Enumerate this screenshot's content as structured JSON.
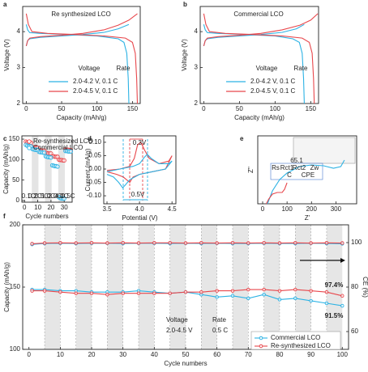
{
  "chart_data": [
    {
      "type": "line",
      "label": "a",
      "title": "Re synthesized LCO",
      "xlabel": "Capacity (mAh/g)",
      "ylabel": "Voltage (V)",
      "xlim": [
        -5,
        161
      ],
      "ylim": [
        2,
        4.7
      ],
      "xticks": [
        0,
        50,
        100,
        150
      ],
      "yticks": [
        2,
        3,
        4
      ],
      "legend_header": [
        "Voltage",
        "Rate"
      ],
      "legend": [
        {
          "label": "2.0-4.2 V, 0.1 C",
          "color": "#2cb2e4"
        },
        {
          "label": "2.0-4.5 V, 0.1 C",
          "color": "#e8474c"
        }
      ],
      "series": [
        {
          "color": "#2cb2e4",
          "x": [
            0,
            2,
            5,
            20,
            50,
            80,
            110,
            130,
            145
          ],
          "values": [
            3.6,
            3.75,
            3.8,
            3.84,
            3.88,
            3.92,
            3.98,
            4.08,
            4.2
          ]
        },
        {
          "color": "#2cb2e4",
          "x": [
            0,
            2,
            5,
            20,
            60,
            100,
            130,
            138,
            142,
            144,
            145
          ],
          "values": [
            4.2,
            4.05,
            3.97,
            3.95,
            3.92,
            3.88,
            3.8,
            3.7,
            3.4,
            2.7,
            2.0
          ]
        },
        {
          "color": "#e8474c",
          "x": [
            0,
            2,
            5,
            20,
            50,
            80,
            110,
            130,
            145,
            157
          ],
          "values": [
            3.6,
            3.75,
            3.82,
            3.86,
            3.9,
            3.95,
            4.05,
            4.18,
            4.32,
            4.5
          ]
        },
        {
          "color": "#e8474c",
          "x": [
            0,
            3,
            8,
            30,
            70,
            110,
            140,
            150,
            154,
            156,
            157
          ],
          "values": [
            4.5,
            4.2,
            4.0,
            3.95,
            3.92,
            3.88,
            3.82,
            3.7,
            3.4,
            2.7,
            2.0
          ]
        }
      ]
    },
    {
      "type": "line",
      "label": "b",
      "title": "Commercial LCO",
      "xlabel": "Capacity (mAh/g)",
      "ylabel": "Voltage (V)",
      "xlim": [
        -5,
        161
      ],
      "ylim": [
        2,
        4.7
      ],
      "xticks": [
        0,
        50,
        100,
        150
      ],
      "yticks": [
        2,
        3,
        4
      ],
      "legend_header": [
        "Voltage",
        "Rate"
      ],
      "legend": [
        {
          "label": "2.0-4.2 V, 0.1 C",
          "color": "#2cb2e4"
        },
        {
          "label": "2.0-4.5 V, 0.1 C",
          "color": "#e8474c"
        }
      ],
      "series": [
        {
          "color": "#2cb2e4",
          "x": [
            0,
            2,
            5,
            20,
            50,
            80,
            110,
            130,
            141
          ],
          "values": [
            3.6,
            3.75,
            3.8,
            3.84,
            3.88,
            3.92,
            3.98,
            4.08,
            4.2
          ]
        },
        {
          "color": "#2cb2e4",
          "x": [
            0,
            2,
            5,
            20,
            60,
            100,
            125,
            134,
            138,
            140,
            141
          ],
          "values": [
            4.2,
            4.05,
            3.97,
            3.95,
            3.92,
            3.88,
            3.8,
            3.7,
            3.4,
            2.7,
            2.0
          ]
        },
        {
          "color": "#e8474c",
          "x": [
            0,
            2,
            5,
            20,
            50,
            80,
            110,
            135,
            150,
            160
          ],
          "values": [
            3.6,
            3.75,
            3.82,
            3.86,
            3.9,
            3.95,
            4.05,
            4.18,
            4.32,
            4.5
          ]
        },
        {
          "color": "#e8474c",
          "x": [
            0,
            3,
            8,
            30,
            70,
            110,
            138,
            148,
            152,
            154,
            155
          ],
          "values": [
            4.5,
            4.2,
            4.0,
            3.95,
            3.92,
            3.88,
            3.82,
            3.7,
            3.4,
            2.7,
            2.0
          ]
        }
      ]
    },
    {
      "type": "scatter",
      "label": "c",
      "xlabel": "Cycle numbers",
      "ylabel": "Capacity (mAh/g)",
      "xlim": [
        -2,
        36
      ],
      "ylim": [
        -4,
        158
      ],
      "xticks": [
        0,
        10,
        20,
        30
      ],
      "yticks": [
        0,
        50,
        100,
        150
      ],
      "rate_labels": [
        "0.1C",
        "0.2C",
        "0.5C",
        "1.0C",
        "2.0C",
        "4.0C",
        "0.5C"
      ],
      "x": [
        1,
        2,
        3,
        4,
        5,
        6,
        7,
        8,
        9,
        10,
        11,
        12,
        13,
        14,
        15,
        16,
        17,
        18,
        19,
        20,
        21,
        22,
        23,
        24,
        25,
        26,
        27,
        28,
        29,
        30,
        31,
        32,
        33,
        34,
        35
      ],
      "series": [
        {
          "name": "Re-synthesized LCO",
          "color": "#e8474c",
          "values": [
            144,
            142,
            142,
            141,
            141,
            131,
            130,
            130,
            129,
            129,
            123,
            123,
            122,
            122,
            122,
            116,
            116,
            115,
            115,
            115,
            108,
            108,
            107,
            107,
            107,
            100,
            99,
            99,
            98,
            98,
            124,
            124,
            124,
            123,
            123
          ]
        },
        {
          "name": "Commercial LCO",
          "color": "#2cb2e4",
          "values": [
            136,
            134,
            133,
            133,
            132,
            126,
            125,
            124,
            124,
            124,
            119,
            118,
            118,
            117,
            117,
            108,
            107,
            106,
            106,
            105,
            86,
            85,
            84,
            84,
            83,
            8,
            6,
            5,
            5,
            5,
            121,
            121,
            120,
            120,
            120
          ]
        }
      ]
    },
    {
      "type": "line",
      "label": "d",
      "xlabel": "Potential (V)",
      "ylabel": "Current (mA/g)",
      "xlim": [
        3.45,
        4.56
      ],
      "ylim": [
        -0.13,
        0.124
      ],
      "xticks": [
        3.5,
        {
          "value": 4,
          "label": "4.0"
        },
        4.5
      ],
      "yticks": [
        {
          "value": -0.1,
          "label": "-0.10"
        },
        -0.05,
        {
          "value": 0,
          "label": "0.00"
        },
        0.05,
        {
          "value": 0.1,
          "label": "0.10"
        }
      ],
      "annotations": [
        {
          "text": "0.3V"
        },
        {
          "text": "0.5V"
        }
      ],
      "series": [
        {
          "color": "#e8474c",
          "x": [
            3.5,
            3.7,
            3.85,
            3.92,
            3.97,
            4.02,
            4.08,
            4.15,
            4.3,
            4.45,
            4.5,
            4.4,
            4.2,
            4.0,
            3.9,
            3.85,
            3.8,
            3.75,
            3.65,
            3.5
          ],
          "values": [
            -0.005,
            0.0,
            0.01,
            0.04,
            0.09,
            0.1,
            0.07,
            0.04,
            0.02,
            0.03,
            0.05,
            0.0,
            -0.01,
            -0.02,
            -0.03,
            -0.05,
            -0.04,
            -0.03,
            -0.02,
            -0.01
          ]
        },
        {
          "color": "#2cb2e4",
          "x": [
            3.5,
            3.7,
            3.9,
            4.0,
            4.08,
            4.12,
            4.18,
            4.3,
            4.45,
            4.5,
            4.4,
            4.2,
            4.0,
            3.85,
            3.78,
            3.74,
            3.68,
            3.6,
            3.5
          ],
          "values": [
            -0.01,
            0.0,
            0.01,
            0.02,
            0.045,
            0.055,
            0.04,
            0.02,
            0.02,
            0.03,
            0.0,
            -0.01,
            -0.02,
            -0.04,
            -0.06,
            -0.07,
            -0.05,
            -0.03,
            -0.02
          ]
        }
      ]
    },
    {
      "type": "line",
      "label": "e",
      "xlabel": "Z'",
      "ylabel": "Z''",
      "xlim": [
        -20,
        385
      ],
      "ylim": [
        0,
        420
      ],
      "xticks": [
        0,
        100,
        200,
        300
      ],
      "annotations": [
        {
          "text": "65.1"
        },
        {
          "text": "Rs"
        },
        {
          "text": "Rct1"
        },
        {
          "text": "Rct2"
        },
        {
          "text": "Zw"
        },
        {
          "text": "C"
        },
        {
          "text": "CPE"
        }
      ],
      "series": [
        {
          "color": "#2cb2e4",
          "x": [
            20,
            40,
            70,
            100,
            150,
            200,
            250,
            290,
            320,
            335
          ],
          "values": [
            0,
            80,
            150,
            190,
            230,
            240,
            235,
            220,
            230,
            270
          ]
        },
        {
          "color": "#e8474c",
          "x": [
            15,
            25,
            40,
            60,
            80,
            90,
            100
          ],
          "values": [
            0,
            30,
            60,
            70,
            70,
            90,
            130
          ]
        }
      ]
    },
    {
      "type": "line",
      "markers": true,
      "label": "f",
      "xlabel": "Cycle numbers",
      "ylabel": "Capacity (mAh/g)",
      "y2label": "CE (%)",
      "xlim": [
        -2,
        102
      ],
      "ylim": [
        100,
        200
      ],
      "y2lim": [
        52,
        108
      ],
      "xticks": [
        0,
        10,
        20,
        30,
        40,
        50,
        60,
        70,
        80,
        90,
        100
      ],
      "yticks": [
        100,
        150,
        200
      ],
      "y2ticks": [
        60,
        80,
        100
      ],
      "annotations": [
        {
          "text": "Voltage"
        },
        {
          "text": "Rate"
        },
        {
          "text": "2.0-4.5 V"
        },
        {
          "text": "0.5 C"
        },
        {
          "text": "97.4%",
          "color": "#e8474c"
        },
        {
          "text": "91.5%",
          "color": "#2cb2e4"
        }
      ],
      "legend": [
        {
          "label": "Commercial LCO",
          "color": "#2cb2e4"
        },
        {
          "label": "Re-synthesized LCO",
          "color": "#e8474c"
        }
      ],
      "x": [
        1,
        5,
        10,
        15,
        20,
        25,
        30,
        35,
        40,
        45,
        50,
        55,
        60,
        65,
        70,
        75,
        80,
        85,
        90,
        95,
        100
      ],
      "series": [
        {
          "color": "#2cb2e4",
          "values": [
            148,
            148,
            147,
            147,
            146,
            146,
            146,
            147,
            146,
            145,
            146,
            144,
            142,
            143,
            141,
            144,
            140,
            141,
            139,
            137,
            135
          ]
        },
        {
          "color": "#e8474c",
          "values": [
            147,
            147,
            146,
            145,
            145,
            144,
            145,
            145,
            145,
            145,
            146,
            146,
            147,
            147,
            148,
            148,
            147,
            148,
            147,
            146,
            143
          ]
        },
        {
          "color": "#2cb2e4",
          "axis": "y2",
          "values": [
            99.2,
            99.6,
            99.7,
            99.6,
            99.7,
            99.7,
            99.6,
            99.7,
            99.7,
            99.6,
            99.7,
            99.6,
            99.7,
            99.6,
            99.6,
            99.7,
            99.6,
            99.6,
            99.7,
            99.6,
            99.5
          ]
        },
        {
          "color": "#e8474c",
          "axis": "y2",
          "values": [
            99.5,
            99.8,
            99.9,
            99.8,
            99.9,
            99.8,
            99.9,
            99.8,
            99.9,
            99.9,
            99.8,
            99.9,
            99.8,
            99.9,
            99.8,
            99.9,
            99.8,
            99.9,
            99.8,
            99.9,
            99.8
          ]
        }
      ]
    }
  ]
}
